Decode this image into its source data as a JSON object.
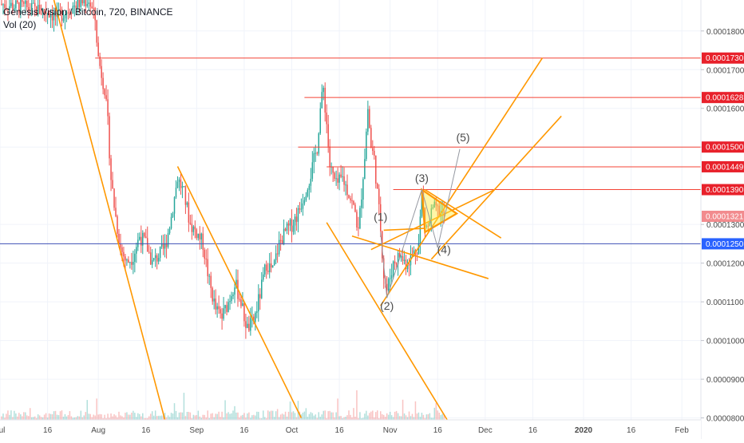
{
  "legend": {
    "title": "Genesis Vision / Bitcoin, 720, BINANCE",
    "indicator": "Vol (20)"
  },
  "colors": {
    "up": "#26a69a",
    "down": "#ef5350",
    "trendline": "#ff9800",
    "hline": "#f44336",
    "current_line": "#3f51b5",
    "triangle_fill": "#ffeb3b",
    "price_label_bg": "#e8212b",
    "current_label_bg": "#2962ff",
    "last_label_bg": "#f28b8e",
    "grid": "#f0f3fa",
    "axis_text": "#4a4a4a"
  },
  "chart_data": {
    "type": "candlestick",
    "title": "Genesis Vision / Bitcoin, 720, BINANCE",
    "grid": true,
    "y_ticks": [
      "0.0001800",
      "0.0001700",
      "0.0001600",
      "0.0001500",
      "0.0001300",
      "0.0001200",
      "0.0001100",
      "0.0001000",
      "0.0000900",
      "0.0000800"
    ],
    "ylim": [
      7.95e-05,
      0.000188
    ],
    "x_ticks": [
      "Jul",
      "16",
      "Aug",
      "16",
      "Sep",
      "16",
      "Oct",
      "16",
      "Nov",
      "16",
      "Dec",
      "16",
      "2020",
      "16",
      "Feb"
    ],
    "x_tick_days": [
      0,
      15,
      31,
      46,
      62,
      77,
      92,
      107,
      123,
      138,
      153,
      168,
      184,
      199,
      215
    ],
    "x_range_days": [
      0,
      221
    ],
    "price_labels": [
      {
        "text": "0.0001730",
        "value": 0.000173,
        "kind": "level"
      },
      {
        "text": "0.0001628",
        "value": 0.0001628,
        "kind": "level"
      },
      {
        "text": "0.0001500",
        "value": 0.00015,
        "kind": "level"
      },
      {
        "text": "0.0001449",
        "value": 0.0001449,
        "kind": "level"
      },
      {
        "text": "0.0001390",
        "value": 0.000139,
        "kind": "level"
      },
      {
        "text": "0.0001321",
        "value": 0.0001321,
        "kind": "last"
      },
      {
        "text": "0.0001250",
        "value": 0.000125,
        "kind": "current"
      }
    ],
    "horizontal_levels": [
      {
        "value": 0.000173,
        "from_day": 30,
        "kind": "level"
      },
      {
        "value": 0.0001628,
        "from_day": 96,
        "kind": "level"
      },
      {
        "value": 0.00015,
        "from_day": 94,
        "kind": "level"
      },
      {
        "value": 0.0001449,
        "from_day": 103,
        "kind": "level"
      },
      {
        "value": 0.000139,
        "from_day": 124,
        "kind": "level"
      },
      {
        "value": 0.000125,
        "from_day": 0,
        "kind": "current"
      }
    ],
    "trendlines": [
      {
        "d1": 17,
        "v1": 0.000188,
        "d2": 52,
        "v2": 7.95e-05
      },
      {
        "d1": 56,
        "v1": 0.000145,
        "d2": 95,
        "v2": 8e-05
      },
      {
        "d1": 103,
        "v1": 0.0001305,
        "d2": 141,
        "v2": 7.95e-05
      },
      {
        "d1": 111,
        "v1": 0.000127,
        "d2": 154,
        "v2": 0.000116
      },
      {
        "d1": 120,
        "v1": 0.000109,
        "d2": 171,
        "v2": 0.000173
      },
      {
        "d1": 136,
        "v1": 0.000121,
        "d2": 177,
        "v2": 0.000158
      },
      {
        "d1": 117,
        "v1": 0.0001235,
        "d2": 156,
        "v2": 0.000139
      },
      {
        "d1": 121,
        "v1": 0.0001285,
        "d2": 134,
        "v2": 0.000129
      },
      {
        "d1": 134,
        "v1": 0.000139,
        "d2": 158,
        "v2": 0.0001265
      }
    ],
    "triangle": [
      {
        "d": 133,
        "v": 0.000139
      },
      {
        "d": 144,
        "v": 0.0001328
      },
      {
        "d": 134,
        "v": 0.000128
      }
    ],
    "wave_path": [
      {
        "d": 120,
        "v": 0.000128
      },
      {
        "d": 122,
        "v": 0.000111
      },
      {
        "d": 133,
        "v": 0.000139
      },
      {
        "d": 138,
        "v": 0.000124
      },
      {
        "d": 145,
        "v": 0.0001495
      }
    ],
    "wave_labels": [
      {
        "text": "(1)",
        "d": 120,
        "v": 0.000131
      },
      {
        "text": "(2)",
        "d": 122,
        "v": 0.000108
      },
      {
        "text": "(3)",
        "d": 133,
        "v": 0.000141
      },
      {
        "text": "(4)",
        "d": 140,
        "v": 0.0001225
      },
      {
        "text": "(5)",
        "d": 146,
        "v": 0.0001515
      }
    ],
    "series": [
      {
        "name": "",
        "points": [
          [
            0,
            0.000187
          ],
          [
            8,
            0.000186
          ],
          [
            15,
            0.000185
          ],
          [
            18,
            0.0001835
          ],
          [
            24,
            0.000187
          ],
          [
            28,
            0.000188
          ],
          [
            30,
            0.000183
          ],
          [
            31,
            0.000173
          ],
          [
            33,
            0.000165
          ],
          [
            34,
            0.000156
          ],
          [
            35,
            0.000142
          ],
          [
            36,
            0.000135
          ],
          [
            37,
            0.000129
          ],
          [
            38,
            0.000124
          ],
          [
            40,
            0.00012
          ],
          [
            42,
            0.000122
          ],
          [
            44,
            0.000127
          ],
          [
            46,
            0.000125
          ],
          [
            48,
            0.00012
          ],
          [
            50,
            0.000122
          ],
          [
            52,
            0.000124
          ],
          [
            54,
            0.000132
          ],
          [
            56,
            0.000142
          ],
          [
            58,
            0.000138
          ],
          [
            60,
            0.00013
          ],
          [
            62,
            0.000128
          ],
          [
            64,
            0.000125
          ],
          [
            66,
            0.000115
          ],
          [
            68,
            0.000108
          ],
          [
            70,
            0.000106
          ],
          [
            72,
            0.00011
          ],
          [
            74,
            0.000115
          ],
          [
            76,
            0.00011
          ],
          [
            77,
            0.000106
          ],
          [
            78,
            0.000103
          ],
          [
            80,
            0.000105
          ],
          [
            82,
            0.000112
          ],
          [
            84,
            0.00012
          ],
          [
            86,
            0.000118
          ],
          [
            88,
            0.000125
          ],
          [
            90,
            0.000128
          ],
          [
            92,
            0.00013
          ],
          [
            94,
            0.000133
          ],
          [
            96,
            0.000138
          ],
          [
            98,
            0.000143
          ],
          [
            100,
            0.00015
          ],
          [
            101,
            0.00016
          ],
          [
            102,
            0.000165
          ],
          [
            103,
            0.000156
          ],
          [
            104,
            0.000145
          ],
          [
            106,
            0.00014
          ],
          [
            108,
            0.000142
          ],
          [
            110,
            0.000138
          ],
          [
            112,
            0.000133
          ],
          [
            113,
            0.000128
          ],
          [
            114,
            0.000138
          ],
          [
            115,
            0.000148
          ],
          [
            116,
            0.00016
          ],
          [
            117,
            0.00015
          ],
          [
            118,
            0.000147
          ],
          [
            119,
            0.000138
          ],
          [
            120,
            0.000129
          ],
          [
            121,
            0.000117
          ],
          [
            122,
            0.000113
          ],
          [
            124,
            0.00012
          ],
          [
            126,
            0.000122
          ],
          [
            128,
            0.00012
          ],
          [
            130,
            0.000122
          ],
          [
            132,
            0.000125
          ],
          [
            133,
            0.000138
          ],
          [
            134,
            0.00013
          ],
          [
            135,
            0.000129
          ],
          [
            136,
            0.000133
          ],
          [
            137,
            0.000134
          ],
          [
            139,
            0.000133
          ],
          [
            140,
            0.0001321
          ]
        ]
      }
    ]
  }
}
